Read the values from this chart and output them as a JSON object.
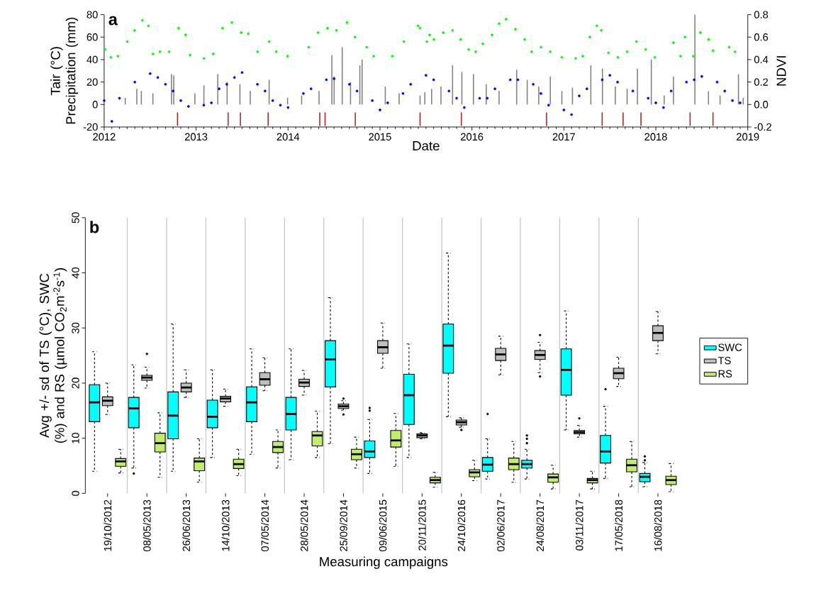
{
  "chart_data": [
    {
      "type": "scatter",
      "title": "a",
      "xlabel": "Date",
      "ylabel": "Tair (°C) Precipitation (mm)",
      "y2label": "NDVI",
      "marker": "circle",
      "xlim": [
        "2012",
        "2019"
      ],
      "xticks": [
        "2012",
        "2013",
        "2014",
        "2015",
        "2016",
        "2017",
        "2018",
        "2019"
      ],
      "ylim": [
        -20,
        80
      ],
      "yticks": [
        -20,
        0,
        20,
        40,
        60,
        80
      ],
      "y2lim": [
        -0.2,
        0.8
      ],
      "y2ticks": [
        -0.2,
        {
          "value": 0,
          "label": "0.0"
        },
        0.2,
        0.4,
        0.6,
        0.8
      ],
      "series": [
        {
          "type": "bar",
          "color": "#808080",
          "x": [
            "2012-03-25",
            "2012-05-10",
            "2012-05-28",
            "2012-07-13",
            "2012-09-25",
            "2012-10-04",
            "2012-12-27",
            "2013-02-01",
            "2013-03-28",
            "2013-05-04",
            "2013-06-24",
            "2013-08-04",
            "2013-10-18",
            "2013-12-30",
            "2014-02-24",
            "2014-05-04",
            "2014-06-24",
            "2014-07-03",
            "2014-08-04",
            "2014-09-06",
            "2014-10-13",
            "2014-10-22",
            "2015-01-22",
            "2015-03-18",
            "2015-06-09",
            "2015-06-28",
            "2015-07-25",
            "2015-08-31",
            "2015-10-16",
            "2015-11-22",
            "2016-01-07",
            "2016-02-27",
            "2016-04-18",
            "2016-06-27",
            "2016-08-08",
            "2016-09-23",
            "2016-11-08",
            "2016-12-24",
            "2017-02-04",
            "2017-04-18",
            "2017-06-03",
            "2017-07-24",
            "2017-09-09",
            "2017-10-20",
            "2017-12-14",
            "2018-02-03",
            "2018-03-12",
            "2018-06-05",
            "2018-07-29",
            "2018-09-13",
            "2018-11-25",
            "2018-12-14"
          ],
          "values": [
            6,
            14,
            12,
            10,
            27,
            26,
            10,
            17,
            27,
            20,
            18,
            12,
            22,
            6,
            8,
            12,
            44,
            25,
            51,
            20,
            35,
            40,
            16,
            10,
            8,
            11,
            14,
            16,
            35,
            29,
            27,
            18,
            12,
            31,
            22,
            16,
            25,
            12,
            15,
            35,
            32,
            16,
            14,
            32,
            40,
            8,
            25,
            80,
            12,
            8,
            27,
            6
          ]
        },
        {
          "type": "scatter",
          "color": "#0000ff",
          "x": [
            "2012-01",
            "2012-02",
            "2012-03",
            "2012-05",
            "2012-07",
            "2012-08",
            "2012-09",
            "2012-10",
            "2012-11",
            "2012-12",
            "2013-02",
            "2013-03",
            "2013-04",
            "2013-05",
            "2013-06",
            "2013-07",
            "2013-09",
            "2013-10",
            "2013-11",
            "2013-12",
            "2014-01",
            "2014-03",
            "2014-04",
            "2014-06",
            "2014-07",
            "2014-09",
            "2014-10",
            "2014-12",
            "2015-01",
            "2015-02",
            "2015-04",
            "2015-05",
            "2015-07",
            "2015-08",
            "2015-10",
            "2015-11",
            "2015-12",
            "2016-02",
            "2016-03",
            "2016-04",
            "2016-06",
            "2016-07",
            "2016-09",
            "2016-10",
            "2016-11",
            "2017-01",
            "2017-02",
            "2017-03",
            "2017-04",
            "2017-06",
            "2017-07",
            "2017-08",
            "2017-10",
            "2017-12",
            "2018-01",
            "2018-02",
            "2018-03",
            "2018-05",
            "2018-06",
            "2018-07",
            "2018-09",
            "2018-10",
            "2018-11",
            "2018-12"
          ],
          "values": [
            3.5,
            -15,
            5.6,
            20,
            27.5,
            24,
            18,
            12,
            3.5,
            -1.7,
            -0.6,
            1.5,
            14,
            18,
            24,
            28.5,
            18,
            12,
            3.5,
            -0.6,
            -2.7,
            9.8,
            14,
            22,
            23,
            18,
            12,
            3.5,
            -4.8,
            1.5,
            9.8,
            18,
            26,
            22,
            12,
            5.6,
            -2.7,
            5.6,
            5.6,
            14,
            22,
            22,
            18,
            9.8,
            -0.6,
            -4.8,
            -9,
            7.7,
            14,
            22,
            26,
            20,
            12,
            5.6,
            1.5,
            -2.7,
            12,
            20,
            22,
            25,
            20,
            12,
            3.5,
            1.5
          ]
        },
        {
          "type": "scatter",
          "axis": "y2",
          "color": "#00ff00",
          "x": [
            "2012-01-05",
            "2012-01-28",
            "2012-02-25",
            "2012-04-02",
            "2012-05-01",
            "2012-06-01",
            "2012-06-25",
            "2012-07-13",
            "2012-08-10",
            "2012-09-16",
            "2012-10-23",
            "2012-11-20",
            "2012-12-08",
            "2013-02-01",
            "2013-03-10",
            "2013-04-16",
            "2013-05-23",
            "2013-06-29",
            "2013-07-27",
            "2013-09-02",
            "2013-10-18",
            "2013-11-15",
            "2013-12-30",
            "2014-03-24",
            "2014-04-30",
            "2014-06-06",
            "2014-07-12",
            "2014-08-23",
            "2014-09-24",
            "2014-11-09",
            "2014-12-07",
            "2015-02-19",
            "2015-04-06",
            "2015-06-01",
            "2015-06-09",
            "2015-07-06",
            "2015-07-17",
            "2015-08-03",
            "2015-09-09",
            "2015-10-16",
            "2015-11-17",
            "2015-12-19",
            "2016-01-16",
            "2016-02-13",
            "2016-03-21",
            "2016-04-18",
            "2016-05-16",
            "2016-06-22",
            "2016-07-29",
            "2016-08-26",
            "2016-10-02",
            "2016-11-08",
            "2016-12-24",
            "2017-02-17",
            "2017-03-17",
            "2017-04-14",
            "2017-05-12",
            "2017-05-30",
            "2017-06-27",
            "2017-08-03",
            "2017-09-09",
            "2017-10-16",
            "2017-11-22",
            "2017-12-28",
            "2018-03-12",
            "2018-04-09",
            "2018-04-27",
            "2018-05-30",
            "2018-06-27",
            "2018-07-29",
            "2018-08-16",
            "2018-10-19",
            "2018-11-11"
          ],
          "values": [
            0.49,
            0.42,
            0.43,
            0.56,
            0.66,
            0.75,
            0.7,
            0.45,
            0.47,
            0.47,
            0.68,
            0.62,
            0.44,
            0.41,
            0.45,
            0.68,
            0.73,
            0.64,
            0.63,
            0.47,
            0.56,
            0.47,
            0.43,
            0.51,
            0.64,
            0.68,
            0.66,
            0.73,
            0.6,
            0.51,
            0.43,
            0.43,
            0.56,
            0.7,
            0.68,
            0.56,
            0.62,
            0.58,
            0.64,
            0.66,
            0.58,
            0.49,
            0.47,
            0.54,
            0.62,
            0.72,
            0.76,
            0.67,
            0.58,
            0.47,
            0.51,
            0.47,
            0.42,
            0.41,
            0.43,
            0.6,
            0.7,
            0.66,
            0.46,
            0.42,
            0.47,
            0.56,
            0.49,
            0.42,
            0.55,
            0.43,
            0.6,
            0.43,
            0.64,
            0.58,
            0.48,
            0.51,
            0.47
          ]
        },
        {
          "type": "bar",
          "color": "#b22222",
          "x": [
            "2012-10-19",
            "2013-05-08",
            "2013-06-26",
            "2013-10-14",
            "2014-05-07",
            "2014-05-28",
            "2014-09-25",
            "2015-06-09",
            "2015-11-20",
            "2016-10-24",
            "2017-06-02",
            "2017-08-24",
            "2017-11-03",
            "2018-05-17",
            "2018-08-16"
          ],
          "base": [
            -19,
            -19,
            -19,
            -19,
            -19,
            -19,
            -19,
            -19,
            -19,
            -19,
            -19,
            -19,
            -19,
            -19,
            -19
          ],
          "values": [
            12,
            12,
            12,
            12,
            12,
            12,
            12,
            12,
            12,
            12,
            12,
            12,
            12,
            12,
            12
          ]
        }
      ]
    },
    {
      "type": "box",
      "title": "b",
      "xlabel": "Measuring campaigns",
      "ylabel": "Avg +/- sd of TS (°C), SWC (%) and RS (µmol CO$_{2}$m$^{-2}$s$^{-1}$)",
      "categories": [
        "19/10/2012",
        "08/05/2013",
        "26/06/2013",
        "14/10/2013",
        "07/05/2014",
        "28/05/2014",
        "25/09/2014",
        "09/06/2015",
        "20/11/2015",
        "24/10/2016",
        "02/06/2017",
        "24/08/2017",
        "03/11/2017",
        "17/05/2018",
        "16/08/2018"
      ],
      "ylim": [
        0,
        50
      ],
      "yticks": [
        0,
        10,
        20,
        30,
        40,
        50
      ],
      "grid": "x",
      "legend": "right",
      "series": [
        {
          "name": "SWC",
          "color": "#00ffff",
          "boxes": [
            {
              "low": 4.0,
              "q1": 13.0,
              "median": 16.5,
              "q3": 19.7,
              "high": 25.7
            },
            {
              "low": 4.6,
              "q1": 11.9,
              "median": 15.4,
              "q3": 17.4,
              "high": 23.3,
              "outliers": [
                3.6
              ]
            },
            {
              "low": 4.0,
              "q1": 9.9,
              "median": 14.1,
              "q3": 18.4,
              "high": 30.7
            },
            {
              "low": 6.5,
              "q1": 11.9,
              "median": 13.9,
              "q3": 16.9,
              "high": 22.4
            },
            {
              "low": 7.1,
              "q1": 13.0,
              "median": 16.5,
              "q3": 19.3,
              "high": 26.2
            },
            {
              "low": 6.1,
              "q1": 11.5,
              "median": 14.4,
              "q3": 17.4,
              "high": 26.2
            },
            {
              "low": 9.0,
              "q1": 19.3,
              "median": 24.3,
              "q3": 27.7,
              "high": 35.5
            },
            {
              "low": 3.6,
              "q1": 6.5,
              "median": 7.6,
              "q3": 9.5,
              "high": 13.4,
              "outliers": [
                15.0,
                15.5
              ]
            },
            {
              "low": 6.5,
              "q1": 12.5,
              "median": 17.8,
              "q3": 21.6,
              "high": 27.1
            },
            {
              "low": 13.9,
              "q1": 21.8,
              "median": 26.8,
              "q3": 30.7,
              "high": 43.6
            },
            {
              "low": 2.6,
              "q1": 4.0,
              "median": 5.2,
              "q3": 6.5,
              "high": 9.9,
              "outliers": [
                14.4
              ]
            },
            {
              "low": 2.6,
              "q1": 4.6,
              "median": 5.3,
              "q3": 6.0,
              "high": 8.0,
              "outliers": [
                9.1,
                9.9,
                10.5
              ]
            },
            {
              "low": 11.5,
              "q1": 17.8,
              "median": 22.4,
              "q3": 26.2,
              "high": 33.1
            },
            {
              "low": 2.7,
              "q1": 5.5,
              "median": 7.6,
              "q3": 10.5,
              "high": 15.8,
              "outliers": [
                18.9
              ]
            },
            {
              "low": 1.2,
              "q1": 2.1,
              "median": 3.0,
              "q3": 3.6,
              "high": 5.6,
              "outliers": [
                6.0,
                6.7
              ]
            }
          ]
        },
        {
          "name": "TS",
          "color": "#bebebe",
          "boxes": [
            {
              "low": 14.3,
              "q1": 15.9,
              "median": 16.8,
              "q3": 17.5,
              "high": 20.0
            },
            {
              "low": 19.1,
              "q1": 20.5,
              "median": 21.0,
              "q3": 21.4,
              "high": 22.9,
              "outliers": [
                25.3
              ]
            },
            {
              "low": 17.4,
              "q1": 18.4,
              "median": 19.2,
              "q3": 20.0,
              "high": 22.4
            },
            {
              "low": 15.8,
              "q1": 16.6,
              "median": 17.2,
              "q3": 17.6,
              "high": 18.9
            },
            {
              "low": 18.6,
              "q1": 19.6,
              "median": 20.7,
              "q3": 21.9,
              "high": 24.6
            },
            {
              "low": 17.8,
              "q1": 19.4,
              "median": 20.1,
              "q3": 20.7,
              "high": 22.3
            },
            {
              "low": 15.1,
              "q1": 15.4,
              "median": 15.8,
              "q3": 16.2,
              "high": 16.8,
              "outliers": [
                14.3,
                17.2
              ]
            },
            {
              "low": 22.7,
              "q1": 25.4,
              "median": 26.5,
              "q3": 27.7,
              "high": 30.9
            },
            {
              "low": 9.9,
              "q1": 10.1,
              "median": 10.5,
              "q3": 10.8,
              "high": 11.0
            },
            {
              "low": 12.0,
              "q1": 12.4,
              "median": 12.9,
              "q3": 13.3,
              "high": 13.7,
              "outliers": [
                11.5
              ]
            },
            {
              "low": 21.5,
              "q1": 24.1,
              "median": 25.2,
              "q3": 26.3,
              "high": 28.5
            },
            {
              "low": 21.9,
              "q1": 24.3,
              "median": 25.1,
              "q3": 25.9,
              "high": 27.4,
              "outliers": [
                21.2,
                28.7
              ]
            },
            {
              "low": 10.2,
              "q1": 10.8,
              "median": 11.1,
              "q3": 11.4,
              "high": 12.3,
              "outliers": [
                13.6
              ]
            },
            {
              "low": 19.4,
              "q1": 20.8,
              "median": 21.8,
              "q3": 22.7,
              "high": 24.7
            },
            {
              "low": 25.3,
              "q1": 27.7,
              "median": 29.1,
              "q3": 30.4,
              "high": 33.0
            }
          ]
        },
        {
          "name": "RS",
          "color": "#c0ee6a",
          "boxes": [
            {
              "low": 3.7,
              "q1": 4.9,
              "median": 5.8,
              "q3": 6.3,
              "high": 8.0
            },
            {
              "low": 2.9,
              "q1": 7.5,
              "median": 9.1,
              "q3": 10.9,
              "high": 14.6
            },
            {
              "low": 2.0,
              "q1": 4.1,
              "median": 5.8,
              "q3": 6.4,
              "high": 9.9
            },
            {
              "low": 3.2,
              "q1": 4.5,
              "median": 5.3,
              "q3": 6.2,
              "high": 8.0
            },
            {
              "low": 4.6,
              "q1": 7.4,
              "median": 8.4,
              "q3": 9.4,
              "high": 11.5
            },
            {
              "low": 6.5,
              "q1": 8.6,
              "median": 10.5,
              "q3": 11.2,
              "high": 14.9
            },
            {
              "low": 4.6,
              "q1": 6.1,
              "median": 7.1,
              "q3": 8.0,
              "high": 10.2
            },
            {
              "low": 4.9,
              "q1": 8.4,
              "median": 9.6,
              "q3": 11.4,
              "high": 14.5
            },
            {
              "low": 1.1,
              "q1": 1.9,
              "median": 2.4,
              "q3": 2.9,
              "high": 3.8
            },
            {
              "low": 2.3,
              "q1": 3.0,
              "median": 3.8,
              "q3": 4.3,
              "high": 6.0
            },
            {
              "low": 2.0,
              "q1": 4.3,
              "median": 5.3,
              "q3": 6.4,
              "high": 9.4
            },
            {
              "low": 0.8,
              "q1": 2.0,
              "median": 2.9,
              "q3": 3.5,
              "high": 5.1
            },
            {
              "low": 0.8,
              "q1": 1.9,
              "median": 2.4,
              "q3": 2.7,
              "high": 4.0
            },
            {
              "low": 1.2,
              "q1": 3.9,
              "median": 5.1,
              "q3": 6.2,
              "high": 9.4
            },
            {
              "low": 0.3,
              "q1": 1.6,
              "median": 2.4,
              "q3": 3.1,
              "high": 5.4
            }
          ]
        }
      ]
    }
  ]
}
